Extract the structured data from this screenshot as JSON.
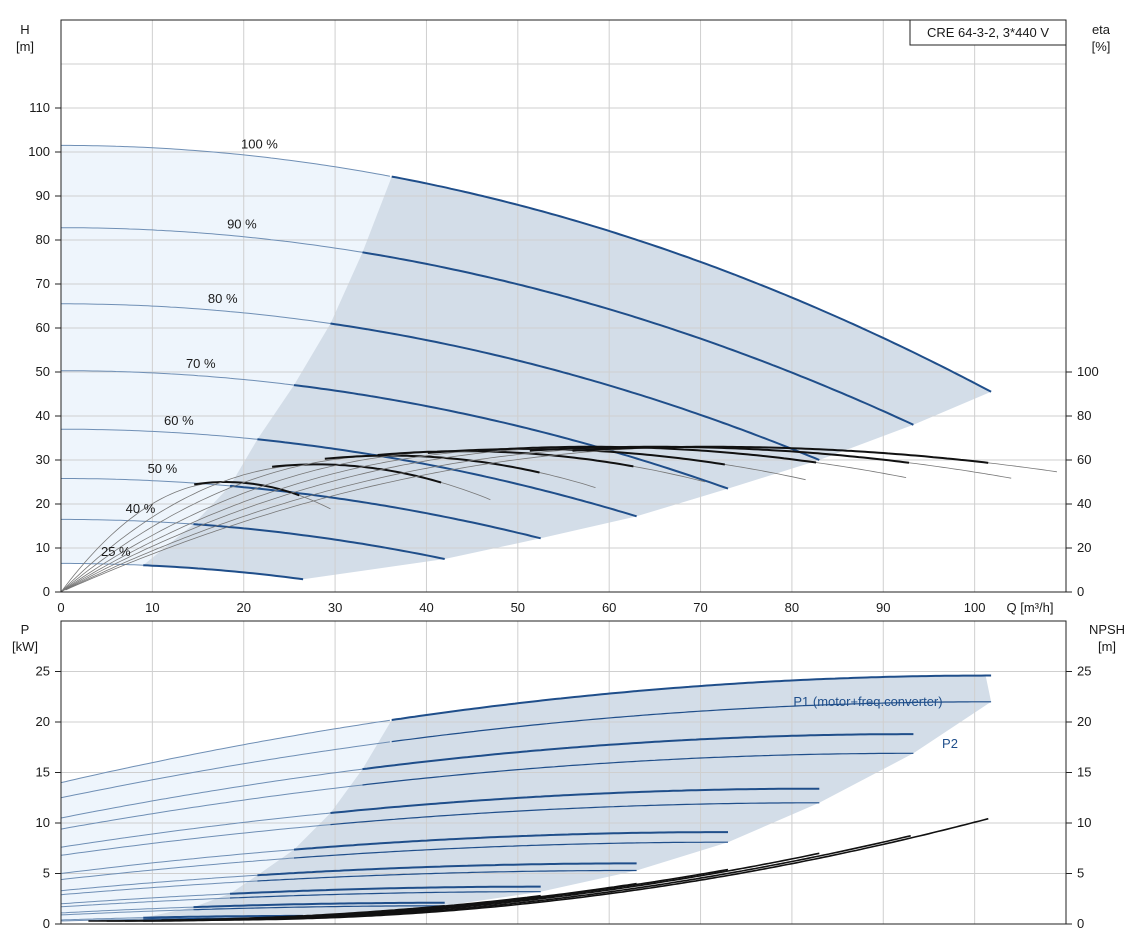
{
  "badge": "CRE 64-3-2, 3*440 V",
  "colors": {
    "curve": "#1f4e8a",
    "curve_thin": "#6f8fb5",
    "eff": "#111111",
    "region_light": "#eef5fc",
    "region_dark": "#d3dde8",
    "grid": "#cfcfcf"
  },
  "chart_data": [
    {
      "type": "line",
      "name": "head",
      "y_label_left": "H",
      "y_unit_left": "[m]",
      "y_label_right": "eta",
      "y_unit_right": "[%]",
      "x_label": "Q [m³/h]",
      "xlim": [
        0,
        110
      ],
      "ylim": [
        0,
        130
      ],
      "y2lim": [
        0,
        260
      ],
      "x_ticks": [
        "0",
        "10",
        "20",
        "30",
        "40",
        "50",
        "60",
        "70",
        "80",
        "90",
        "100"
      ],
      "y_ticks": [
        "0",
        "10",
        "20",
        "30",
        "40",
        "50",
        "60",
        "70",
        "80",
        "90",
        "100",
        "110"
      ],
      "y2_ticks": [
        "0",
        "20",
        "40",
        "60",
        "80",
        "100"
      ],
      "grid": true,
      "speed_curves": [
        {
          "label": "100 %",
          "h0": 101.5,
          "qmax": 101.8,
          "hend": 45.5,
          "qlo": 36.2
        },
        {
          "label": "90 %",
          "h0": 82.8,
          "qmax": 93.3,
          "hend": 38,
          "qlo": 33
        },
        {
          "label": "80 %",
          "h0": 65.5,
          "qmax": 83,
          "hend": 30,
          "qlo": 29.5
        },
        {
          "label": "70 %",
          "h0": 50.3,
          "qmax": 73,
          "hend": 23.5,
          "qlo": 25.5
        },
        {
          "label": "60 %",
          "h0": 37,
          "qmax": 63,
          "hend": 17.2,
          "qlo": 21.5
        },
        {
          "label": "50 %",
          "h0": 25.8,
          "qmax": 52.5,
          "hend": 12.2,
          "qlo": 18.5
        },
        {
          "label": "40 %",
          "h0": 16.5,
          "qmax": 42,
          "hend": 7.5,
          "qlo": 14.5
        },
        {
          "label": "25 %",
          "h0": 6.5,
          "qmax": 26.5,
          "hend": 2.9,
          "qlo": 9
        }
      ],
      "efficiency_curves": [
        {
          "peak_q": 18,
          "peak_eta": 50,
          "qmax": 26.5
        },
        {
          "peak_q": 28,
          "peak_eta": 58,
          "qmax": 42
        },
        {
          "peak_q": 36,
          "peak_eta": 62,
          "qmax": 52.5
        },
        {
          "peak_q": 44,
          "peak_eta": 64,
          "qmax": 63
        },
        {
          "peak_q": 51,
          "peak_eta": 65,
          "qmax": 73
        },
        {
          "peak_q": 58,
          "peak_eta": 66,
          "qmax": 83
        },
        {
          "peak_q": 65,
          "peak_eta": 66,
          "qmax": 93.3
        },
        {
          "peak_q": 71,
          "peak_eta": 66,
          "qmax": 101.8
        }
      ]
    },
    {
      "type": "line",
      "name": "power",
      "y_label_left": "P",
      "y_unit_left": "[kW]",
      "y_label_right": "NPSH",
      "y_unit_right": "[m]",
      "xlim": [
        0,
        110
      ],
      "ylim": [
        0,
        30
      ],
      "y_ticks": [
        "0",
        "5",
        "10",
        "15",
        "20",
        "25"
      ],
      "y2_ticks": [
        "0",
        "5",
        "10",
        "15",
        "20",
        "25"
      ],
      "grid": true,
      "series_labels": {
        "p1": "P1 (motor+freq.converter)",
        "p2": "P2"
      },
      "power_curves": [
        {
          "p1_0": 14.0,
          "p1_end": 24.6,
          "p2_0": 12.5,
          "p2_end": 22.0,
          "qmax": 101.8,
          "qlo": 36.2
        },
        {
          "p1_0": 10.5,
          "p1_end": 18.8,
          "p2_0": 9.4,
          "p2_end": 16.9,
          "qmax": 93.3,
          "qlo": 33
        },
        {
          "p1_0": 7.6,
          "p1_end": 13.4,
          "p2_0": 6.8,
          "p2_end": 12.0,
          "qmax": 83,
          "qlo": 29.5
        },
        {
          "p1_0": 5.0,
          "p1_end": 9.1,
          "p2_0": 4.4,
          "p2_end": 8.1,
          "qmax": 73,
          "qlo": 25.5
        },
        {
          "p1_0": 3.3,
          "p1_end": 6.0,
          "p2_0": 2.9,
          "p2_end": 5.3,
          "qmax": 63,
          "qlo": 21.5
        },
        {
          "p1_0": 2.0,
          "p1_end": 3.7,
          "p2_0": 1.7,
          "p2_end": 3.2,
          "qmax": 52.5,
          "qlo": 18.5
        },
        {
          "p1_0": 1.1,
          "p1_end": 2.1,
          "p2_0": 0.9,
          "p2_end": 1.8,
          "qmax": 42,
          "qlo": 14.5
        },
        {
          "p1_0": 0.4,
          "p1_end": 0.8,
          "p2_0": 0.3,
          "p2_end": 0.6,
          "qmax": 26.5,
          "qlo": 9
        }
      ],
      "npsh_curves": [
        {
          "q0": 17,
          "qmax": 101.8,
          "n0": 0.4,
          "nend": 10.5
        },
        {
          "q0": 15,
          "qmax": 93.3,
          "n0": 0.4,
          "nend": 8.8
        },
        {
          "q0": 13,
          "qmax": 83,
          "n0": 0.4,
          "nend": 7.0
        },
        {
          "q0": 11,
          "qmax": 73,
          "n0": 0.4,
          "nend": 5.4
        },
        {
          "q0": 9,
          "qmax": 63,
          "n0": 0.3,
          "nend": 4.0
        },
        {
          "q0": 7,
          "qmax": 52.5,
          "n0": 0.3,
          "nend": 2.8
        },
        {
          "q0": 5,
          "qmax": 42,
          "n0": 0.3,
          "nend": 1.8
        },
        {
          "q0": 3,
          "qmax": 26.5,
          "n0": 0.3,
          "nend": 0.8
        }
      ]
    }
  ]
}
